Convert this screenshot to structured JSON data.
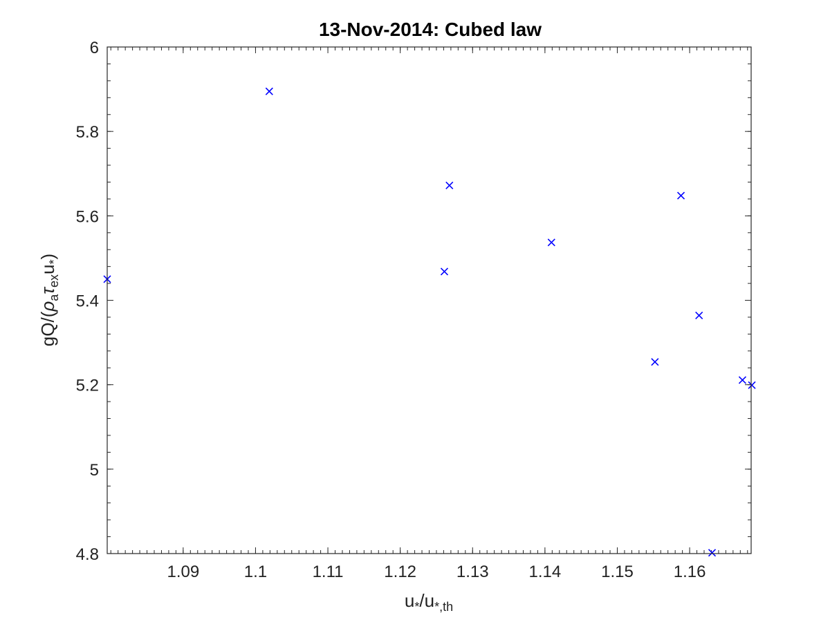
{
  "chart_data": {
    "type": "scatter",
    "title": "13-Nov-2014: Cubed law",
    "xlabel": {
      "base1": "u",
      "sub1": "*",
      "sep": "/u",
      "sub2": "*,th"
    },
    "ylabel": {
      "p1": "gQ/(",
      "rho": "ρ",
      "sub_a": "a",
      "tau": "τ",
      "sub_ex": "ex",
      "u": "u",
      "sub_star": "*",
      "close": ")"
    },
    "xlim": [
      1.0795,
      1.1685
    ],
    "ylim": [
      4.8,
      6.0
    ],
    "xticks": [
      "1.09",
      "1.1",
      "1.11",
      "1.12",
      "1.13",
      "1.14",
      "1.15",
      "1.16"
    ],
    "yticks": [
      "4.8",
      "5",
      "5.2",
      "5.4",
      "5.6",
      "5.8",
      "6"
    ],
    "grid": false,
    "marker": "x",
    "color": "#0000ff",
    "series": [
      {
        "points": [
          {
            "x": 1.0795,
            "y": 5.45
          },
          {
            "x": 1.1019,
            "y": 5.895
          },
          {
            "x": 1.1261,
            "y": 5.468
          },
          {
            "x": 1.1268,
            "y": 5.672
          },
          {
            "x": 1.1409,
            "y": 5.537
          },
          {
            "x": 1.1552,
            "y": 5.254
          },
          {
            "x": 1.1588,
            "y": 5.648
          },
          {
            "x": 1.1613,
            "y": 5.364
          },
          {
            "x": 1.1631,
            "y": 4.802
          },
          {
            "x": 1.1673,
            "y": 5.211
          },
          {
            "x": 1.1686,
            "y": 5.199
          }
        ]
      }
    ]
  }
}
